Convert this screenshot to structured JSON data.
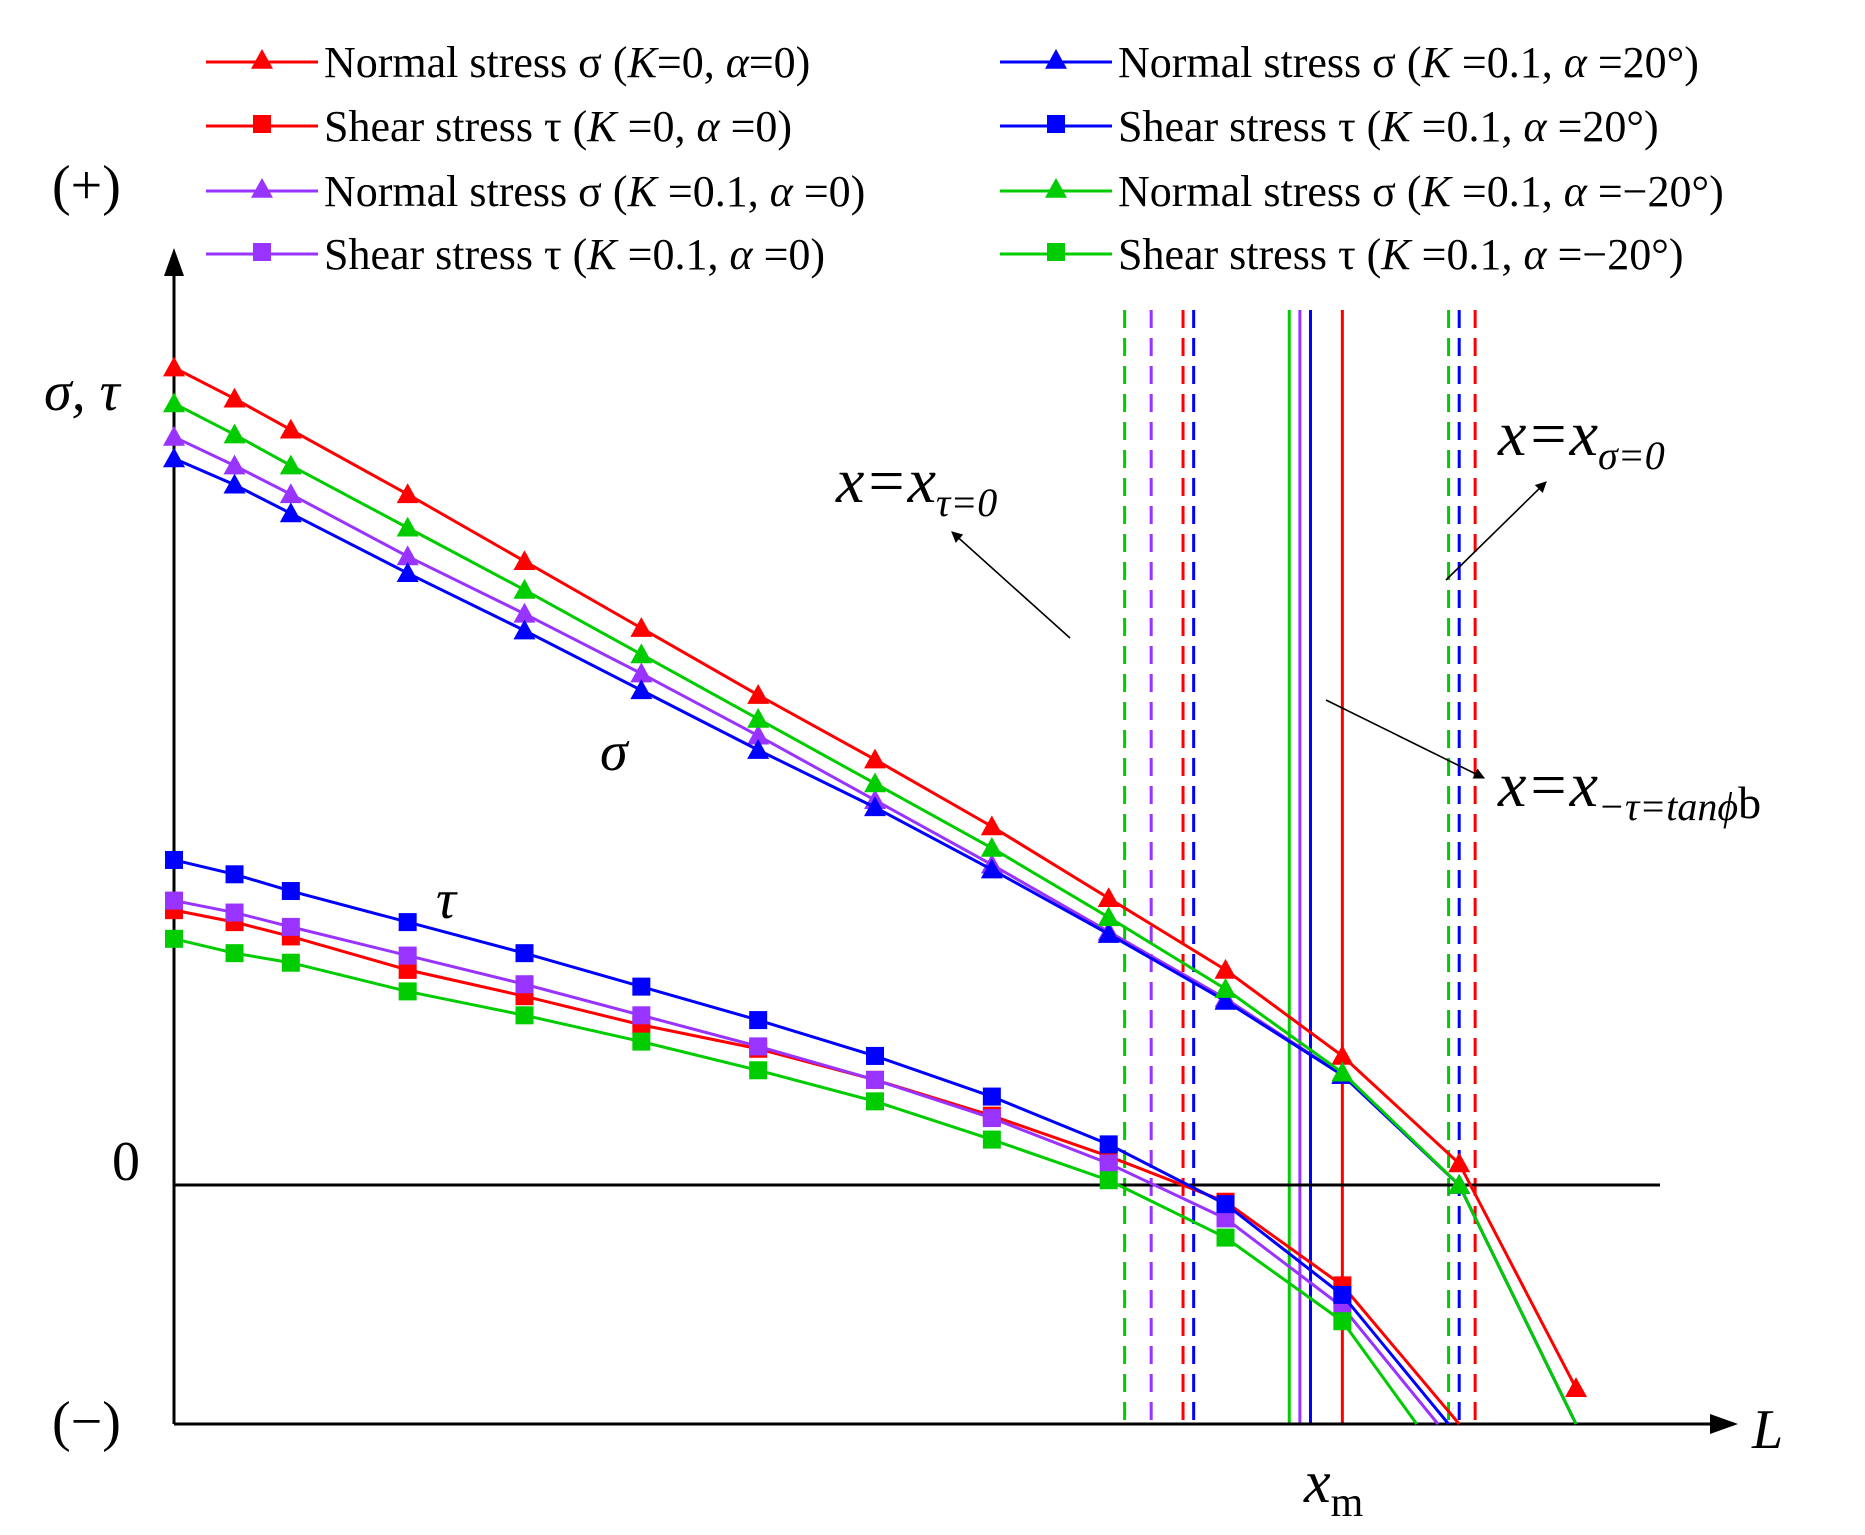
{
  "chart_data": {
    "type": "line",
    "title": "",
    "xlabel": "L",
    "ylabel": "σ, τ",
    "xlim": [
      0,
      14
    ],
    "ylim": [
      -1,
      3.45
    ],
    "y_top_label": "(+)",
    "y_bottom_label": "(−)",
    "y_zero_label": "0",
    "x_marker_label": "x",
    "x_marker_sub": "m",
    "curve_labels": {
      "sigma": "σ",
      "tau": "τ"
    },
    "legend_columns": 2,
    "legend": [
      {
        "prefix": "Normal stress σ (",
        "k": "K",
        "k_val": "=0, ",
        "a": "α",
        "a_val": "=0)",
        "color": "#ff0000",
        "marker": "triangle"
      },
      {
        "prefix": "Shear stress τ (",
        "k": "K",
        "k_val": " =0, ",
        "a": "α",
        "a_val": " =0)",
        "color": "#ff0000",
        "marker": "square"
      },
      {
        "prefix": "Normal stress σ (",
        "k": "K",
        "k_val": " =0.1, ",
        "a": "α",
        "a_val": " =0)",
        "color": "#9933ff",
        "marker": "triangle"
      },
      {
        "prefix": "Shear stress τ (",
        "k": "K",
        "k_val": " =0.1, ",
        "a": "α",
        "a_val": " =0)",
        "color": "#9933ff",
        "marker": "square"
      },
      {
        "prefix": "Normal stress σ (",
        "k": "K",
        "k_val": " =0.1, ",
        "a": "α",
        "a_val": " =20°)",
        "color": "#0000ff",
        "marker": "triangle"
      },
      {
        "prefix": "Shear stress τ (",
        "k": "K",
        "k_val": " =0.1, ",
        "a": "α",
        "a_val": " =20°)",
        "color": "#0000ff",
        "marker": "square"
      },
      {
        "prefix": "Normal stress σ (",
        "k": "K",
        "k_val": " =0.1, ",
        "a": "α",
        "a_val": " =−20°)",
        "color": "#00cc00",
        "marker": "triangle"
      },
      {
        "prefix": "Shear stress τ (",
        "k": "K",
        "k_val": " =0.1, ",
        "a": "α",
        "a_val": " =−20°)",
        "color": "#00cc00",
        "marker": "square"
      }
    ],
    "series": [
      {
        "color": "#ff0000",
        "marker": "triangle",
        "x": [
          0,
          0.57,
          1.1,
          2.2,
          3.3,
          4.4,
          5.5,
          6.6,
          7.7,
          8.8,
          9.9,
          11.0,
          12.1,
          13.2
        ],
        "y": [
          3.42,
          3.29,
          3.16,
          2.89,
          2.61,
          2.33,
          2.05,
          1.78,
          1.5,
          1.2,
          0.9,
          0.54,
          0.09,
          -0.85
        ]
      },
      {
        "color": "#ff0000",
        "marker": "square",
        "x": [
          0,
          0.57,
          1.1,
          2.2,
          3.3,
          4.4,
          5.5,
          6.6,
          7.7,
          8.8,
          9.9,
          11.0,
          12.1
        ],
        "y": [
          1.15,
          1.1,
          1.04,
          0.9,
          0.79,
          0.67,
          0.57,
          0.44,
          0.29,
          0.12,
          -0.07,
          -0.42,
          -1.0
        ]
      },
      {
        "color": "#9933ff",
        "marker": "triangle",
        "x": [
          0,
          0.57,
          1.1,
          2.2,
          3.3,
          4.4,
          5.5,
          6.6,
          7.7,
          8.8,
          9.9,
          11.0,
          12.1,
          13.2
        ],
        "y": [
          3.13,
          3.01,
          2.89,
          2.63,
          2.39,
          2.14,
          1.88,
          1.61,
          1.34,
          1.06,
          0.78,
          0.46,
          0.0,
          -1.0
        ]
      },
      {
        "color": "#9933ff",
        "marker": "square",
        "x": [
          0,
          0.57,
          1.1,
          2.2,
          3.3,
          4.4,
          5.5,
          6.6,
          7.7,
          8.8,
          9.9,
          11.0,
          11.9
        ],
        "y": [
          1.19,
          1.14,
          1.08,
          0.96,
          0.84,
          0.71,
          0.58,
          0.44,
          0.28,
          0.09,
          -0.14,
          -0.51,
          -1.0
        ]
      },
      {
        "color": "#0000ff",
        "marker": "triangle",
        "x": [
          0,
          0.57,
          1.1,
          2.2,
          3.3,
          4.4,
          5.5,
          6.6,
          7.7,
          8.8,
          9.9,
          11.0,
          12.1,
          13.2
        ],
        "y": [
          3.04,
          2.93,
          2.81,
          2.56,
          2.32,
          2.07,
          1.82,
          1.58,
          1.32,
          1.05,
          0.77,
          0.46,
          0.0,
          -1.0
        ]
      },
      {
        "color": "#0000ff",
        "marker": "square",
        "x": [
          0,
          0.57,
          1.1,
          2.2,
          3.3,
          4.4,
          5.5,
          6.6,
          7.7,
          8.8,
          9.9,
          11.0,
          12.0
        ],
        "y": [
          1.36,
          1.3,
          1.23,
          1.1,
          0.97,
          0.83,
          0.69,
          0.54,
          0.37,
          0.17,
          -0.08,
          -0.46,
          -1.0
        ]
      },
      {
        "color": "#00cc00",
        "marker": "triangle",
        "x": [
          0,
          0.57,
          1.1,
          2.2,
          3.3,
          4.4,
          5.5,
          6.6,
          7.7,
          8.8,
          9.9,
          11.0,
          12.1,
          13.2
        ],
        "y": [
          3.27,
          3.14,
          3.01,
          2.75,
          2.49,
          2.22,
          1.95,
          1.68,
          1.41,
          1.12,
          0.82,
          0.47,
          0.0,
          -1.0
        ]
      },
      {
        "color": "#00cc00",
        "marker": "square",
        "x": [
          0,
          0.57,
          1.1,
          2.2,
          3.3,
          4.4,
          5.5,
          6.6,
          7.7,
          8.8,
          9.9,
          11.0,
          11.7
        ],
        "y": [
          1.03,
          0.97,
          0.93,
          0.81,
          0.71,
          0.6,
          0.48,
          0.35,
          0.19,
          0.02,
          -0.22,
          -0.57,
          -1.0
        ]
      }
    ],
    "vertical_lines": [
      {
        "x": 11.0,
        "style": "solid",
        "color": "#ff0000"
      },
      {
        "x": 10.7,
        "style": "solid",
        "color": "#0000ff"
      },
      {
        "x": 10.6,
        "style": "solid",
        "color": "#9933ff"
      },
      {
        "x": 10.5,
        "style": "solid",
        "color": "#00cc00"
      },
      {
        "x": 8.95,
        "style": "dashed",
        "color": "#00cc00"
      },
      {
        "x": 9.2,
        "style": "dashed",
        "color": "#9933ff"
      },
      {
        "x": 9.5,
        "style": "dashed",
        "color": "#ff0000"
      },
      {
        "x": 9.6,
        "style": "dashed",
        "color": "#0000ff"
      },
      {
        "x": 12.0,
        "style": "dashed",
        "color": "#00cc00"
      },
      {
        "x": 12.1,
        "style": "dashed",
        "color": "#0000ff"
      },
      {
        "x": 12.25,
        "style": "dashed",
        "color": "#ff0000"
      }
    ],
    "annotations": {
      "tau0": {
        "main": "x=x",
        "sub": "τ=0"
      },
      "sigma0": {
        "main": "x=x",
        "sub": "σ=0"
      },
      "tanphi": {
        "main": "x=x",
        "sub": "−τ=tanϕ",
        "sub2": "b"
      }
    }
  }
}
